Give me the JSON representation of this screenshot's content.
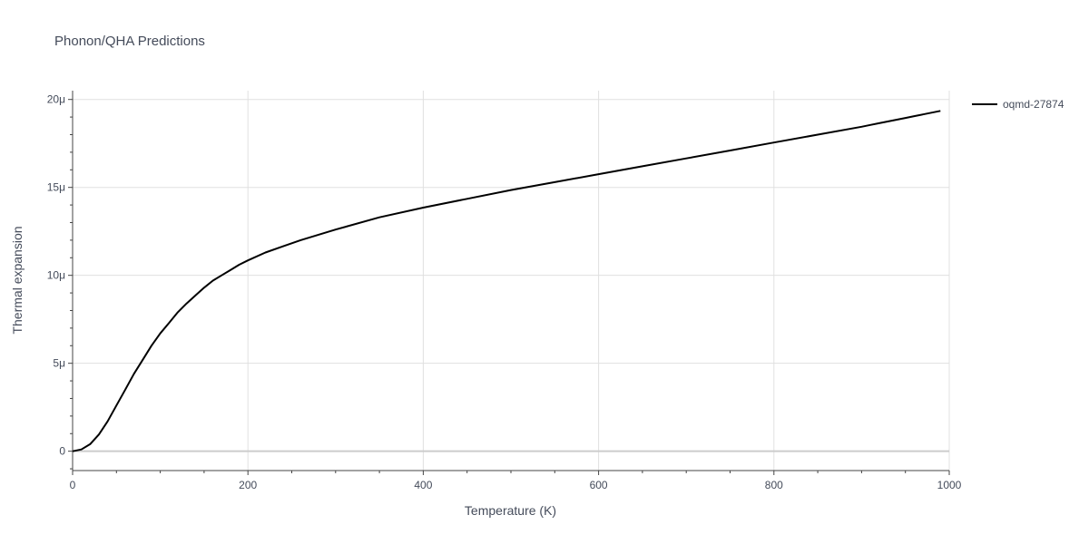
{
  "chart_data": {
    "type": "line",
    "title": "Phonon/QHA Predictions",
    "xlabel": "Temperature (K)",
    "ylabel": "Thermal expansion",
    "xlim": [
      0,
      1000
    ],
    "ylim": [
      -1.1,
      20.5
    ],
    "x_ticks": [
      0,
      200,
      400,
      600,
      800,
      1000
    ],
    "y_ticks": [
      0,
      5,
      10,
      15,
      20
    ],
    "y_tick_labels": [
      "0",
      "5μ",
      "10μ",
      "15μ",
      "20μ"
    ],
    "grid": true,
    "legend_position": "top-right",
    "series": [
      {
        "name": "oqmd-27874",
        "color": "#000000",
        "x": [
          0,
          10,
          20,
          30,
          40,
          50,
          60,
          70,
          80,
          90,
          100,
          110,
          120,
          130,
          140,
          150,
          160,
          170,
          180,
          190,
          200,
          220,
          240,
          260,
          280,
          300,
          350,
          400,
          450,
          500,
          550,
          600,
          650,
          700,
          750,
          800,
          850,
          900,
          910,
          920,
          950,
          960,
          970,
          990
        ],
        "y": [
          0,
          0.1,
          0.4,
          0.95,
          1.7,
          2.6,
          3.5,
          4.4,
          5.2,
          6.0,
          6.7,
          7.3,
          7.9,
          8.4,
          8.85,
          9.3,
          9.7,
          10.0,
          10.3,
          10.6,
          10.85,
          11.3,
          11.65,
          12.0,
          12.3,
          12.6,
          13.3,
          13.85,
          14.35,
          14.85,
          15.3,
          15.75,
          16.2,
          16.65,
          17.1,
          17.55,
          18.0,
          18.45,
          18.55,
          18.65,
          18.95,
          19.05,
          19.15,
          19.35
        ]
      }
    ]
  }
}
